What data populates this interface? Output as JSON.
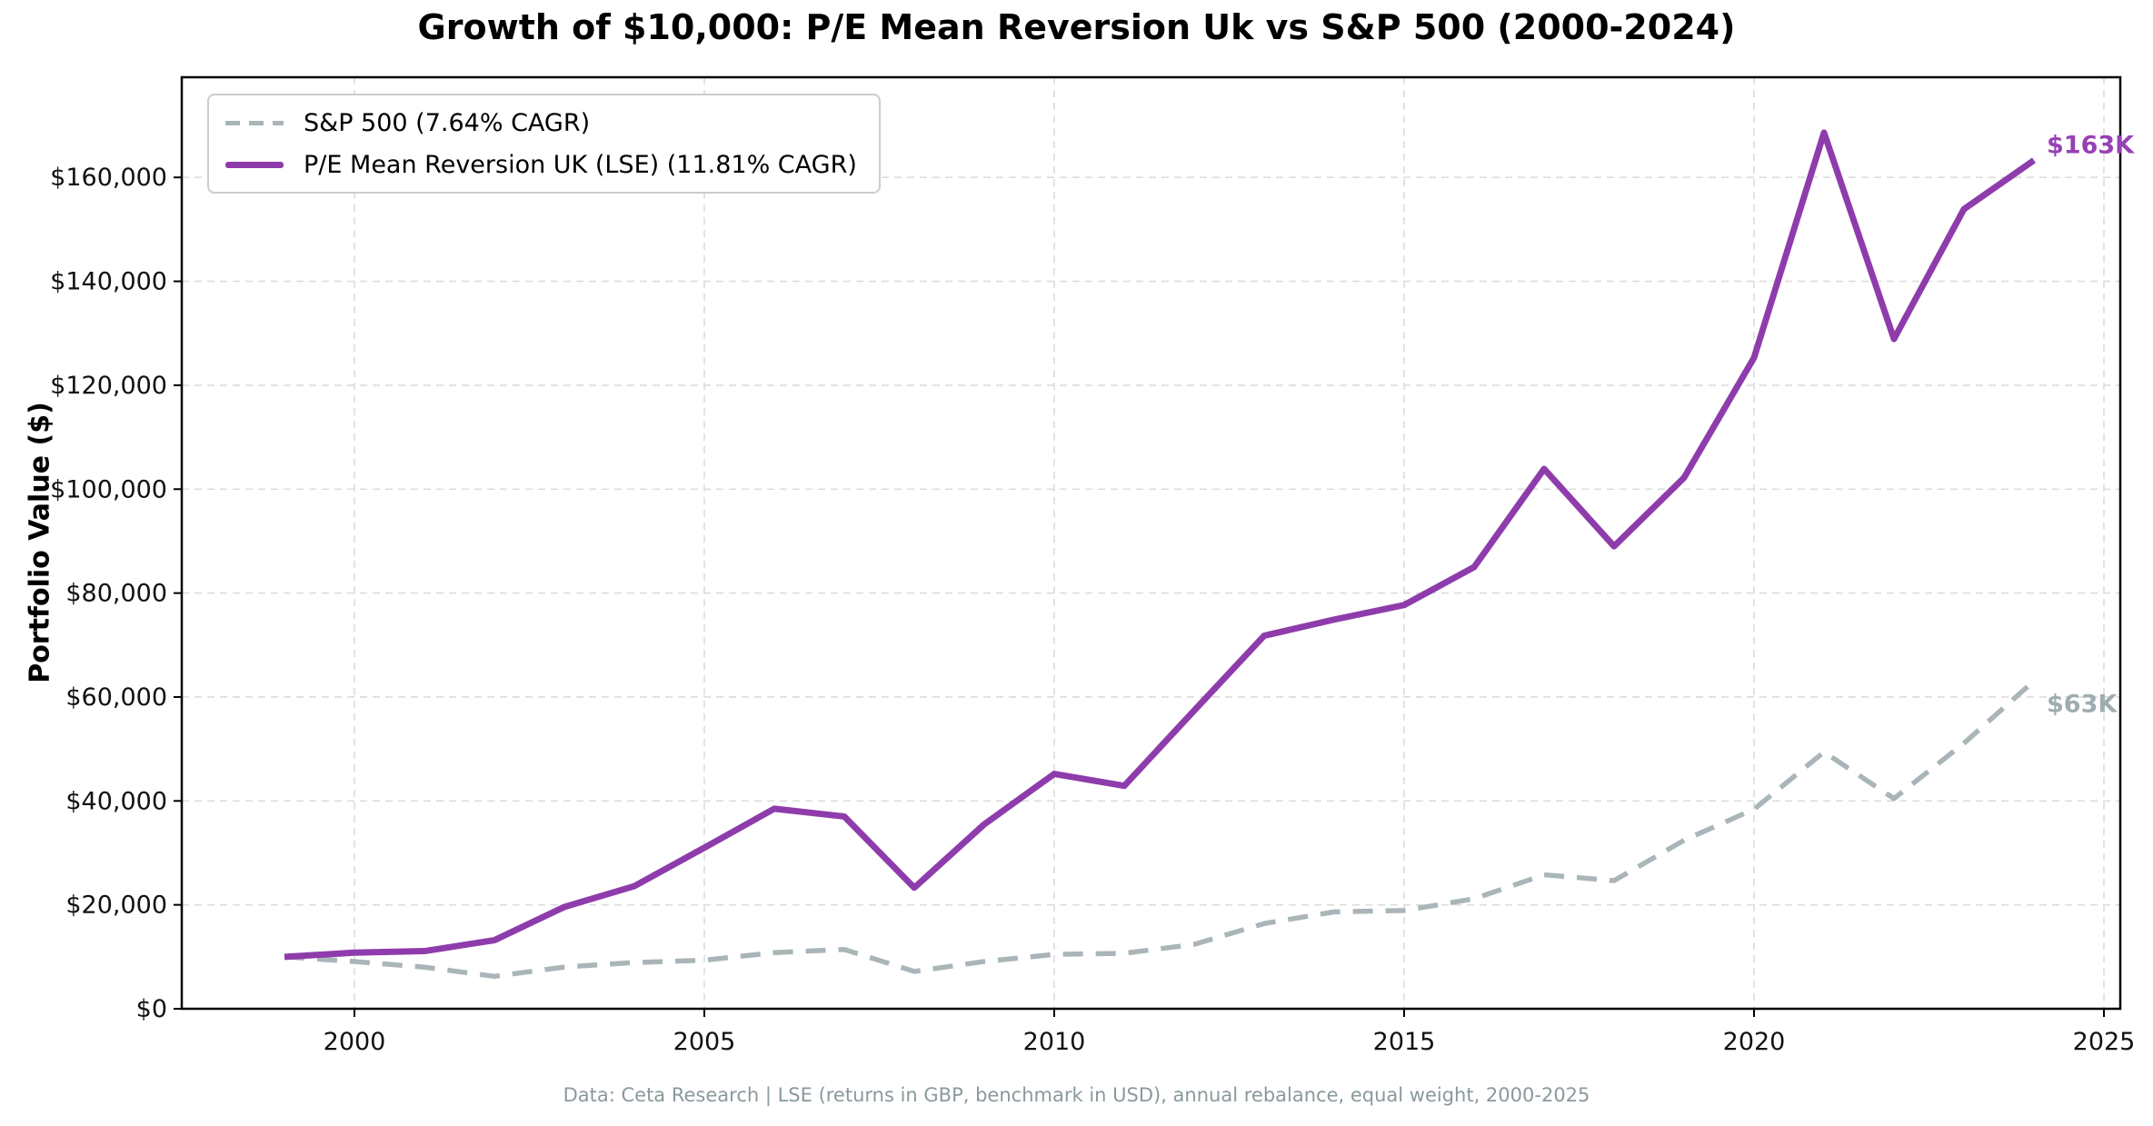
{
  "page": {
    "title": "Growth of $10,000: P/E Mean Reversion Uk vs S&P 500 (2000-2024)",
    "caption": "Data: Ceta Research | LSE (returns in GBP, benchmark in USD), annual rebalance, equal weight, 2000-2025"
  },
  "chart_data": {
    "type": "line",
    "title": "Growth of $10,000: P/E Mean Reversion Uk vs S&P 500 (2000-2024)",
    "xlabel": "",
    "ylabel": "Portfolio Value ($)",
    "grid": true,
    "legend_position": "upper left",
    "xlim": [
      1997.5,
      2025.3
    ],
    "ylim": [
      0,
      179000
    ],
    "x_tick_values": [
      2000,
      2005,
      2010,
      2015,
      2020,
      2025
    ],
    "x_tick_labels": [
      "2000",
      "2005",
      "2010",
      "2015",
      "2020",
      "2025"
    ],
    "y_tick_values": [
      0,
      20000,
      40000,
      60000,
      80000,
      100000,
      120000,
      140000,
      160000
    ],
    "y_tick_labels": [
      "$0",
      "$20,000",
      "$40,000",
      "$60,000",
      "$80,000",
      "$100,000",
      "$120,000",
      "$140,000",
      "$160,000"
    ],
    "years": [
      1999,
      2000,
      2001,
      2002,
      2003,
      2004,
      2005,
      2006,
      2007,
      2008,
      2009,
      2010,
      2011,
      2012,
      2013,
      2014,
      2015,
      2016,
      2017,
      2018,
      2019,
      2020,
      2021,
      2022,
      2023,
      2024
    ],
    "series": [
      {
        "name": "S&P 500 (7.64% CAGR)",
        "style": "dashed",
        "color": "#a9b5b8",
        "end_label": "$63K",
        "values": [
          10000,
          9090,
          8010,
          6240,
          8030,
          8900,
          9340,
          10810,
          11410,
          7190,
          9090,
          10460,
          10680,
          12390,
          16400,
          18650,
          18910,
          21170,
          25790,
          24660,
          32430,
          38400,
          49410,
          40460,
          51100,
          63100
        ]
      },
      {
        "name": "P/E Mean Reversion UK (LSE) (11.81% CAGR)",
        "style": "solid",
        "color": "#8e3cab",
        "end_label": "$163K",
        "values": [
          10000,
          10800,
          11100,
          13200,
          19600,
          23600,
          31000,
          38500,
          37000,
          23300,
          35500,
          45200,
          42900,
          57400,
          71800,
          74900,
          77700,
          85000,
          103900,
          89000,
          102200,
          125300,
          168600,
          128900,
          153900,
          163300
        ]
      }
    ]
  }
}
